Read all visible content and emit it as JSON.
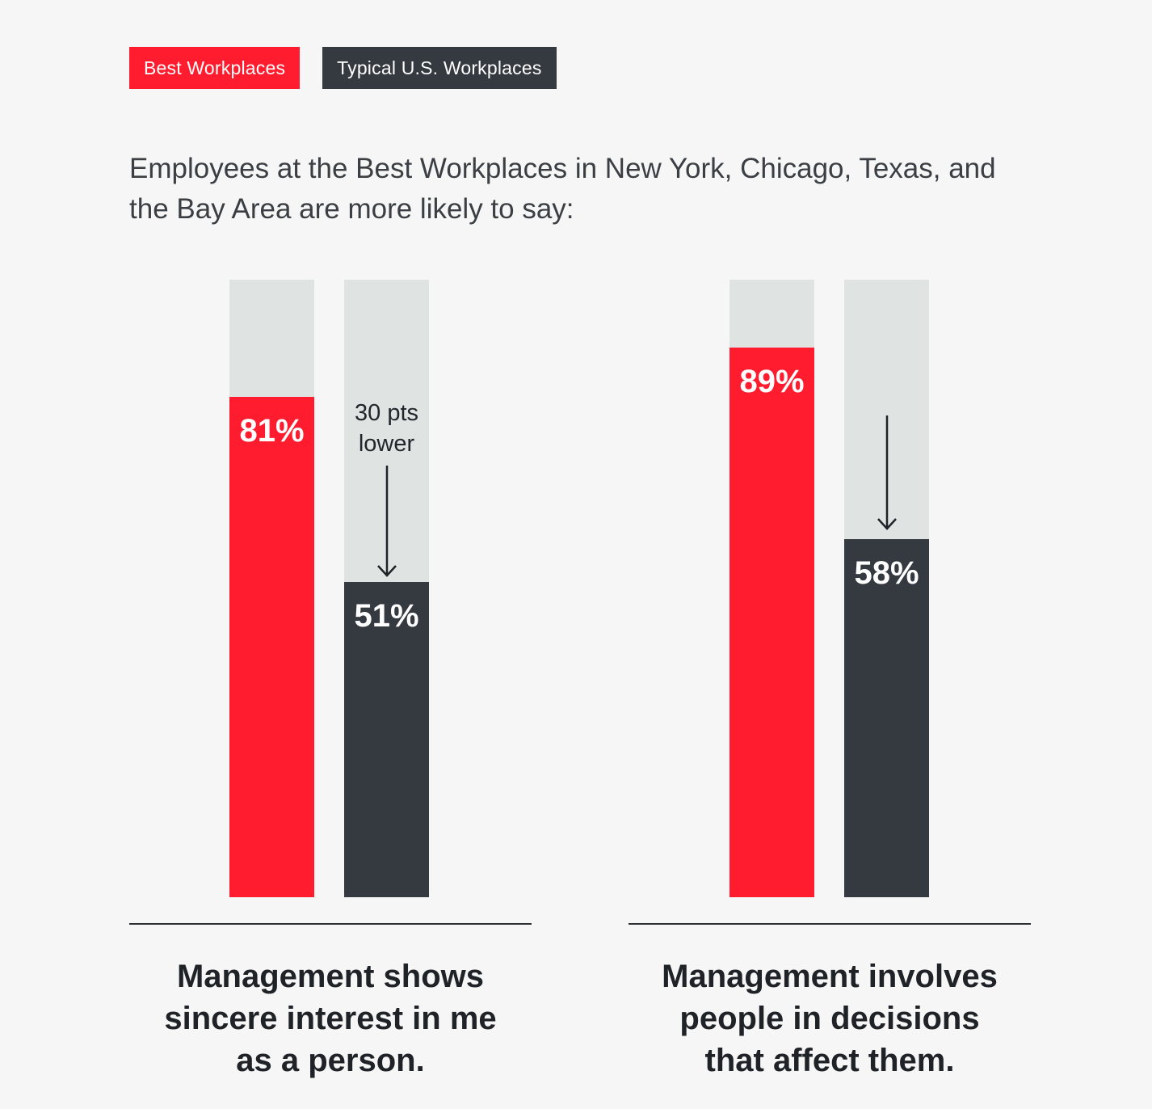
{
  "legend": [
    {
      "label": "Best Workplaces",
      "color": "#ff1c2e"
    },
    {
      "label": "Typical U.S. Workplaces",
      "color": "#353a40"
    }
  ],
  "subtitle": "Employees at the Best Workplaces in New York, Chicago, Texas, and the Bay Area are more likely to say:",
  "chart_data": [
    {
      "type": "bar",
      "categories": [
        "Best Workplaces",
        "Typical U.S. Workplaces"
      ],
      "values": [
        81,
        51
      ],
      "value_labels": [
        "81%",
        "51%"
      ],
      "ylim": [
        0,
        100
      ],
      "annotation": {
        "line1": "30 pts",
        "line2": "lower"
      },
      "xlabel": "Management shows sincere interest in me as a person.",
      "colors": [
        "#ff1c2e",
        "#353a40"
      ]
    },
    {
      "type": "bar",
      "categories": [
        "Best Workplaces",
        "Typical U.S. Workplaces"
      ],
      "values": [
        89,
        58
      ],
      "value_labels": [
        "89%",
        "58%"
      ],
      "ylim": [
        0,
        100
      ],
      "xlabel": "Management involves people in decisions that affect them.",
      "colors": [
        "#ff1c2e",
        "#353a40"
      ]
    }
  ]
}
